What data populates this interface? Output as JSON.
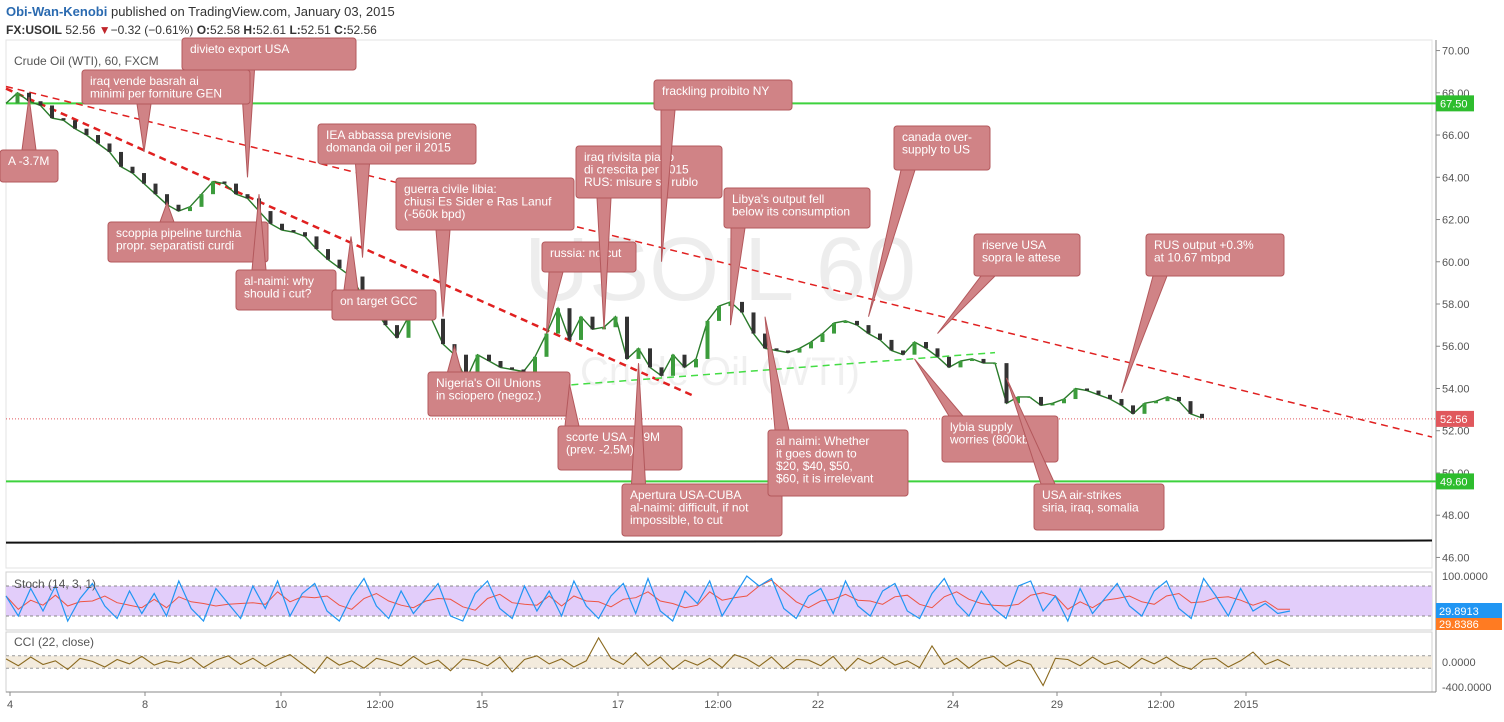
{
  "header": {
    "author": "Obi-Wan-Kenobi",
    "published": "published on TradingView.com, January 03, 2015",
    "symbol": "FX:USOIL",
    "last": "52.56",
    "change": "−0.32 (−0.61%)",
    "open_label": "O:",
    "open": "52.58",
    "high_label": "H:",
    "high": "52.61",
    "low_label": "L:",
    "low": "52.51",
    "close_label": "C:",
    "close": "52.56"
  },
  "chart_data": {
    "type": "line",
    "title": "Crude Oil (WTI), 60, FXCM",
    "watermark_big": "USOIL 60",
    "watermark_small": "Crude Oil (WTI)",
    "ylim": [
      45.5,
      70.5
    ],
    "y_ticks": [
      "70.00",
      "68.00",
      "66.00",
      "64.00",
      "62.00",
      "60.00",
      "58.00",
      "56.00",
      "54.00",
      "52.00",
      "50.00",
      "48.00",
      "46.00"
    ],
    "x_ticks": [
      "4",
      "8",
      "10",
      "12:00",
      "15",
      "17",
      "12:00",
      "22",
      "24",
      "29",
      "12:00",
      "2015"
    ],
    "price_labels": [
      {
        "text": "67.50",
        "value": 67.5,
        "color": "#2ebd2e"
      },
      {
        "text": "52.56",
        "value": 52.56,
        "color": "#e0585d"
      },
      {
        "text": "49.60",
        "value": 49.6,
        "color": "#2ebd2e"
      }
    ],
    "levels": [
      {
        "name": "horizontal-67-50",
        "value": 67.5,
        "color": "#3ed23e"
      },
      {
        "name": "horizontal-49-60",
        "value": 49.6,
        "color": "#3ed23e"
      }
    ],
    "price_series": [
      [
        0,
        67.5
      ],
      [
        1,
        68
      ],
      [
        2,
        67.6
      ],
      [
        3,
        67.4
      ],
      [
        4,
        66.8
      ],
      [
        5,
        66.7
      ],
      [
        6,
        66.3
      ],
      [
        7,
        66
      ],
      [
        8,
        65.6
      ],
      [
        9,
        65.2
      ],
      [
        10,
        64.5
      ],
      [
        11,
        64.2
      ],
      [
        12,
        63.7
      ],
      [
        13,
        63.2
      ],
      [
        14,
        62.7
      ],
      [
        15,
        62.4
      ],
      [
        16,
        62.6
      ],
      [
        17,
        63.2
      ],
      [
        18,
        63.8
      ],
      [
        19,
        63.7
      ],
      [
        20,
        63.2
      ],
      [
        21,
        63.0
      ],
      [
        22,
        62.4
      ],
      [
        23,
        61.8
      ],
      [
        24,
        61.5
      ],
      [
        25,
        61.4
      ],
      [
        26,
        61.2
      ],
      [
        27,
        60.6
      ],
      [
        28,
        60.1
      ],
      [
        29,
        59.7
      ],
      [
        30,
        59.3
      ],
      [
        31,
        58.4
      ],
      [
        32,
        57.8
      ],
      [
        33,
        57.0
      ],
      [
        34,
        56.4
      ],
      [
        35,
        57.4
      ],
      [
        36,
        58.1
      ],
      [
        37,
        57.3
      ],
      [
        38,
        56.1
      ],
      [
        39,
        55.6
      ],
      [
        40,
        54.4
      ],
      [
        41,
        55.6
      ],
      [
        42,
        55.3
      ],
      [
        43,
        55.0
      ],
      [
        44,
        54.9
      ],
      [
        45,
        54.8
      ],
      [
        46,
        55.5
      ],
      [
        47,
        56.6
      ],
      [
        48,
        57.8
      ],
      [
        49,
        56.3
      ],
      [
        50,
        57.4
      ],
      [
        51,
        56.8
      ],
      [
        52,
        56.9
      ],
      [
        53,
        57.4
      ],
      [
        54,
        55.4
      ],
      [
        55,
        55.9
      ],
      [
        56,
        55.0
      ],
      [
        57,
        54.6
      ],
      [
        58,
        55.6
      ],
      [
        59,
        55.0
      ],
      [
        60,
        55.4
      ],
      [
        61,
        57.2
      ],
      [
        62,
        57.9
      ],
      [
        63,
        58.1
      ],
      [
        64,
        57.6
      ],
      [
        65,
        56.6
      ],
      [
        66,
        55.9
      ],
      [
        67,
        55.8
      ],
      [
        68,
        55.7
      ],
      [
        69,
        55.9
      ],
      [
        70,
        56.2
      ],
      [
        71,
        56.6
      ],
      [
        72,
        57.1
      ],
      [
        73,
        57.2
      ],
      [
        74,
        57.0
      ],
      [
        75,
        56.6
      ],
      [
        76,
        56.3
      ],
      [
        77,
        55.8
      ],
      [
        78,
        55.6
      ],
      [
        79,
        56.2
      ],
      [
        80,
        55.9
      ],
      [
        81,
        55.5
      ],
      [
        82,
        55.0
      ],
      [
        83,
        55.3
      ],
      [
        84,
        55.4
      ],
      [
        85,
        55.2
      ],
      [
        86,
        55.2
      ],
      [
        87,
        53.3
      ],
      [
        88,
        53.6
      ],
      [
        89,
        53.6
      ],
      [
        90,
        53.2
      ],
      [
        91,
        53.3
      ],
      [
        92,
        53.5
      ],
      [
        93,
        54.0
      ],
      [
        94,
        53.9
      ],
      [
        95,
        53.7
      ],
      [
        96,
        53.5
      ],
      [
        97,
        53.2
      ],
      [
        98,
        52.8
      ],
      [
        99,
        53.3
      ],
      [
        100,
        53.4
      ],
      [
        101,
        53.6
      ],
      [
        102,
        53.4
      ],
      [
        103,
        52.8
      ],
      [
        104,
        52.6
      ]
    ],
    "x_range": [
      0,
      124
    ],
    "trendlines": [
      {
        "name": "trendline-main",
        "points": [
          [
            0,
            68.3
          ],
          [
            124,
            51.7
          ]
        ],
        "color": "#e02020",
        "style": "dashed"
      },
      {
        "name": "trendline-steep",
        "points": [
          [
            0,
            68.2
          ],
          [
            60,
            53.6
          ]
        ],
        "color": "#e02020",
        "style": "dashed",
        "width": 2.5
      },
      {
        "name": "trendline-support",
        "points": [
          [
            45,
            54.0
          ],
          [
            86,
            55.7
          ]
        ],
        "color": "#44dd44",
        "style": "dashed"
      },
      {
        "name": "trendline-black",
        "points": [
          [
            0,
            46.7
          ],
          [
            124,
            46.8
          ]
        ],
        "color": "#111111",
        "style": "solid",
        "width": 2
      }
    ],
    "annotations": [
      {
        "id": "a1",
        "lines": [
          "divieto export USA"
        ],
        "tip": [
          21,
          64.0
        ]
      },
      {
        "id": "a2",
        "lines": [
          "iraq vende basrah ai",
          "minimi per forniture GEN"
        ],
        "tip": [
          12,
          65.2
        ]
      },
      {
        "id": "a3",
        "lines": [
          "IEA abbassa previsione",
          "domanda oil per il 2015"
        ],
        "tip": [
          31,
          60.2
        ]
      },
      {
        "id": "a4",
        "lines": [
          "scoppia pipeline turchia",
          "propr. separatisti curdi"
        ],
        "tip": [
          14,
          62.8
        ]
      },
      {
        "id": "a5",
        "lines": [
          "al-naimi: why",
          "should i cut?"
        ],
        "tip": [
          22,
          63.2
        ]
      },
      {
        "id": "a6",
        "lines": [
          "on target GCC"
        ],
        "tip": [
          30,
          61.2
        ]
      },
      {
        "id": "a7",
        "lines": [
          "guerra civile libia:",
          "chiusi Es Sider e Ras Lanuf",
          "(-560k bpd)"
        ],
        "tip": [
          38,
          57.4
        ]
      },
      {
        "id": "a8",
        "lines": [
          "russia: no cut"
        ],
        "tip": [
          47,
          56.6
        ]
      },
      {
        "id": "a9",
        "lines": [
          "iraq rivisita piano",
          "di crescita per 2015",
          "RUS: misure su rublo"
        ],
        "tip": [
          52,
          56.8
        ]
      },
      {
        "id": "a10",
        "lines": [
          "frackling proibito NY"
        ],
        "tip": [
          57,
          60.0
        ]
      },
      {
        "id": "a11",
        "lines": [
          "Libya's output fell",
          "below its consumption"
        ],
        "tip": [
          63,
          57.0
        ]
      },
      {
        "id": "a12",
        "lines": [
          "canada over-",
          "supply to US"
        ],
        "tip": [
          75,
          57.4
        ]
      },
      {
        "id": "a13",
        "lines": [
          "riserve USA",
          "sopra le attese"
        ],
        "tip": [
          81,
          56.6
        ]
      },
      {
        "id": "a14",
        "lines": [
          "RUS output +0.3%",
          "at 10.67 mbpd"
        ],
        "tip": [
          97,
          53.8
        ]
      },
      {
        "id": "a15",
        "lines": [
          "Nigeria's Oil Unions",
          "in sciopero (negoz.)"
        ],
        "tip": [
          39,
          56.0
        ]
      },
      {
        "id": "a16",
        "lines": [
          "scorte USA -1.9M",
          "(prev. -2.5M)"
        ],
        "tip": [
          49,
          54.2
        ]
      },
      {
        "id": "a17",
        "lines": [
          "Apertura USA-CUBA",
          "al-naimi: difficult, if not",
          "impossible, to cut"
        ],
        "tip": [
          55,
          55.2
        ]
      },
      {
        "id": "a18",
        "lines": [
          "al naimi: Whether",
          "it goes down to",
          "$20, $40, $50,",
          "$60, it is irrelevant"
        ],
        "tip": [
          66,
          57.4
        ]
      },
      {
        "id": "a19",
        "lines": [
          "lybia supply",
          "worries (800kb)"
        ],
        "tip": [
          79,
          55.4
        ]
      },
      {
        "id": "a20",
        "lines": [
          "USA air-strikes",
          "siria, iraq, somalia"
        ],
        "tip": [
          87,
          54.5
        ]
      },
      {
        "id": "a21",
        "lines": [
          "A -3.7M"
        ],
        "tip": [
          2,
          67.8
        ]
      }
    ],
    "stoch": {
      "title": "Stoch (14, 3, 1)",
      "ylim": [
        0,
        100
      ],
      "ticks": [
        "100.0000",
        "0.0000"
      ],
      "bands": [
        80,
        20
      ],
      "k_value": "29.8913",
      "d_value": "29.8386",
      "k_color": "#2196f3",
      "d_color": "#ee5544",
      "k_series": [
        60,
        20,
        75,
        30,
        80,
        10,
        55,
        85,
        40,
        15,
        70,
        25,
        65,
        20,
        90,
        35,
        10,
        75,
        45,
        15,
        80,
        35,
        90,
        20,
        65,
        85,
        30,
        10,
        60,
        95,
        40,
        15,
        70,
        25,
        55,
        85,
        20,
        10,
        65,
        90,
        35,
        15,
        80,
        30,
        70,
        20,
        90,
        40,
        15,
        60,
        85,
        25,
        95,
        30,
        10,
        70,
        45,
        90,
        20,
        60,
        100,
        80,
        95,
        35,
        15,
        60,
        75,
        25,
        90,
        40,
        20,
        70,
        85,
        30,
        15,
        65,
        95,
        45,
        20,
        70,
        35,
        15,
        80,
        90,
        30,
        60,
        10,
        75,
        25,
        55,
        85,
        40,
        20,
        70,
        90,
        35,
        15,
        95,
        60,
        20,
        75,
        30,
        45,
        25,
        30
      ]
    },
    "cci": {
      "title": "CCI (22, close)",
      "ylim": [
        -420,
        420
      ],
      "ticks": [
        "0.0000",
        "-400.0000"
      ],
      "line_color": "#8b6a20",
      "series": [
        50,
        -60,
        80,
        -40,
        20,
        -120,
        60,
        10,
        -80,
        40,
        -30,
        90,
        -50,
        20,
        -20,
        70,
        -90,
        30,
        100,
        -40,
        60,
        -70,
        40,
        120,
        -30,
        -180,
        80,
        -50,
        20,
        -100,
        60,
        10,
        -60,
        90,
        -40,
        30,
        -140,
        50,
        20,
        -60,
        80,
        -160,
        40,
        100,
        -30,
        50,
        -80,
        20,
        390,
        60,
        -40,
        150,
        -60,
        80,
        -120,
        30,
        -50,
        60,
        -90,
        120,
        50,
        -70,
        80,
        -110,
        40,
        30,
        -60,
        90,
        -140,
        60,
        -30,
        80,
        -50,
        20,
        -90,
        260,
        -40,
        60,
        -100,
        40,
        90,
        -70,
        30,
        -40,
        -380,
        60,
        40,
        -60,
        80,
        -40,
        20,
        -100,
        60,
        -30,
        80,
        -50,
        -120,
        40,
        60,
        -80,
        20,
        160,
        -40,
        40,
        -60
      ]
    }
  }
}
